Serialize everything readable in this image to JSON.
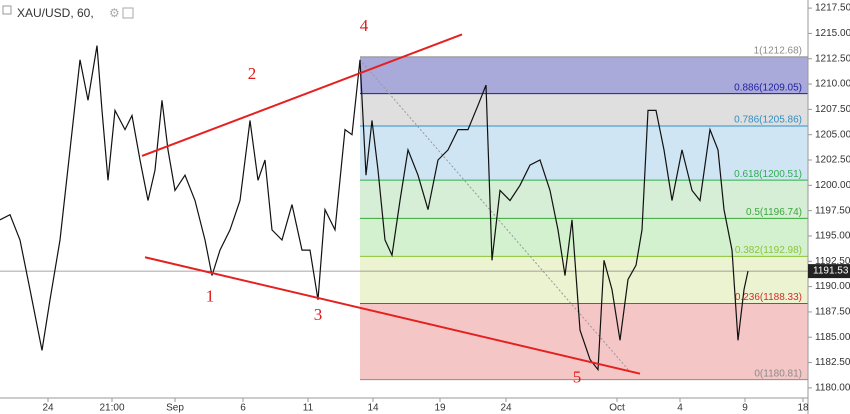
{
  "chart_data": {
    "type": "line",
    "title": "XAU/USD, 60,",
    "color": "#111111",
    "x": [
      0,
      20,
      40,
      60,
      84,
      100,
      120,
      140,
      160,
      176,
      194,
      204,
      216,
      230,
      250,
      264,
      280,
      296,
      310,
      324,
      336,
      350,
      370,
      390,
      410,
      424,
      440,
      460,
      480,
      500,
      516,
      530,
      544,
      564,
      584,
      604,
      620,
      636,
      650,
      670,
      690,
      704,
      720,
      732,
      744,
      756,
      770,
      784,
      800,
      816,
      836,
      856,
      876,
      896,
      916,
      936,
      956,
      972,
      984,
      1000,
      1020,
      1040,
      1060,
      1080,
      1100,
      1116,
      1130,
      1144,
      1160,
      1180,
      1196,
      1208,
      1224,
      1240,
      1256,
      1272,
      1284,
      1296,
      1312,
      1328,
      1344,
      1364,
      1384,
      1400,
      1420,
      1436,
      1448,
      1464,
      1476,
      1488,
      1496
    ],
    "values": [
      1196.6,
      1197.1,
      1194.6,
      1189.7,
      1183.7,
      1188.7,
      1194.6,
      1203.5,
      1212.4,
      1208.4,
      1213.8,
      1207.4,
      1200.5,
      1207.4,
      1205.5,
      1206.9,
      1202.5,
      1198.5,
      1201.5,
      1208.4,
      1203.5,
      1199.5,
      1201.0,
      1198.5,
      1194.6,
      1191.1,
      1193.6,
      1195.6,
      1198.5,
      1206.4,
      1200.5,
      1202.5,
      1195.6,
      1194.6,
      1198.1,
      1193.6,
      1193.6,
      1188.7,
      1197.6,
      1195.6,
      1205.5,
      1205.0,
      1212.4,
      1201.0,
      1206.4,
      1201.5,
      1194.6,
      1193.1,
      1198.5,
      1203.5,
      1201.0,
      1197.6,
      1202.5,
      1203.5,
      1205.5,
      1205.5,
      1207.9,
      1209.9,
      1192.6,
      1199.5,
      1198.5,
      1200.0,
      1202.0,
      1202.5,
      1199.5,
      1195.6,
      1191.1,
      1196.6,
      1185.7,
      1182.8,
      1181.8,
      1192.6,
      1189.7,
      1184.7,
      1190.7,
      1192.1,
      1195.6,
      1207.4,
      1207.4,
      1203.5,
      1198.5,
      1203.5,
      1199.5,
      1198.5,
      1205.5,
      1203.5,
      1197.6,
      1193.6,
      1184.7,
      1189.7,
      1191.53
    ],
    "last_price": 1191.53,
    "xlim": [
      0,
      1616
    ],
    "ylim": [
      1179.0,
      1218.3
    ],
    "xticks": [
      {
        "value": 96,
        "label": "24"
      },
      {
        "value": 224,
        "label": "21:00"
      },
      {
        "value": 350,
        "label": "Sep"
      },
      {
        "value": 486,
        "label": "6"
      },
      {
        "value": 616,
        "label": "11"
      },
      {
        "value": 746,
        "label": "14"
      },
      {
        "value": 880,
        "label": "19"
      },
      {
        "value": 1012,
        "label": "24"
      },
      {
        "value": 1234,
        "label": "Oct"
      },
      {
        "value": 1360,
        "label": "4"
      },
      {
        "value": 1490,
        "label": "9"
      },
      {
        "value": 1606,
        "label": "18"
      }
    ],
    "yticks": [
      {
        "value": 1217.5,
        "label": "1217.50"
      },
      {
        "value": 1215,
        "label": "1215.00"
      },
      {
        "value": 1212.5,
        "label": "1212.50"
      },
      {
        "value": 1210,
        "label": "1210.00"
      },
      {
        "value": 1207.5,
        "label": "1207.50"
      },
      {
        "value": 1205,
        "label": "1205.00"
      },
      {
        "value": 1202.5,
        "label": "1202.50"
      },
      {
        "value": 1200,
        "label": "1200.00"
      },
      {
        "value": 1197.5,
        "label": "1197.50"
      },
      {
        "value": 1195,
        "label": "1195.00"
      },
      {
        "value": 1192.5,
        "label": "1192.50"
      },
      {
        "value": 1190,
        "label": "1190.00"
      },
      {
        "value": 1187.5,
        "label": "1187.50"
      },
      {
        "value": 1185,
        "label": "1185.00"
      },
      {
        "value": 1182.5,
        "label": "1182.50"
      },
      {
        "value": 1180,
        "label": "1180.00"
      }
    ],
    "fibonacci": {
      "x": [
        720,
        1616
      ],
      "levels": [
        {
          "label": "1(1212.68)",
          "price": 1212.68,
          "color": "#8c8c8c",
          "fill": "#9a9ad4"
        },
        {
          "label": "0.886(1209.05)",
          "price": 1209.05,
          "color": "#1f1fa0",
          "fill": "#d9d9d9"
        },
        {
          "label": "0.786(1205.86)",
          "price": 1205.86,
          "color": "#2f8fc4",
          "fill": "#c8e0f2"
        },
        {
          "label": "0.618(1200.51)",
          "price": 1200.51,
          "color": "#2fae4e",
          "fill": "#cfeacf"
        },
        {
          "label": "0.5(1196.74)",
          "price": 1196.74,
          "color": "#3aa83a",
          "fill": "#cbeec6"
        },
        {
          "label": "0.382(1192.98)",
          "price": 1192.98,
          "color": "#8cc43a",
          "fill": "#e8f1c8"
        },
        {
          "label": "0.236(1188.33)",
          "price": 1188.33,
          "color": "#d03030",
          "fill": "#f3bcbc"
        },
        {
          "label": "0(1180.81)",
          "price": 1180.81,
          "color": "#8c8c8c",
          "fill": "#f3bcbc"
        }
      ],
      "diagonal": {
        "x": [
          720,
          1260
        ],
        "y": [
          1212.4,
          1181.6
        ]
      }
    },
    "trendlines": [
      {
        "x": [
          284,
          924
        ],
        "y": [
          1202.9,
          1214.9
        ],
        "color": "#e52020"
      },
      {
        "x": [
          290,
          1280
        ],
        "y": [
          1192.9,
          1181.4
        ],
        "color": "#e52020"
      }
    ],
    "waves": [
      {
        "label": "1",
        "x": 420,
        "y": 1188.9
      },
      {
        "label": "2",
        "x": 504,
        "y": 1210.9
      },
      {
        "label": "3",
        "x": 636,
        "y": 1187.1
      },
      {
        "label": "4",
        "x": 728,
        "y": 1215.6
      },
      {
        "label": "5",
        "x": 1154,
        "y": 1180.9
      }
    ],
    "wave_color": "#dd1a1a"
  }
}
